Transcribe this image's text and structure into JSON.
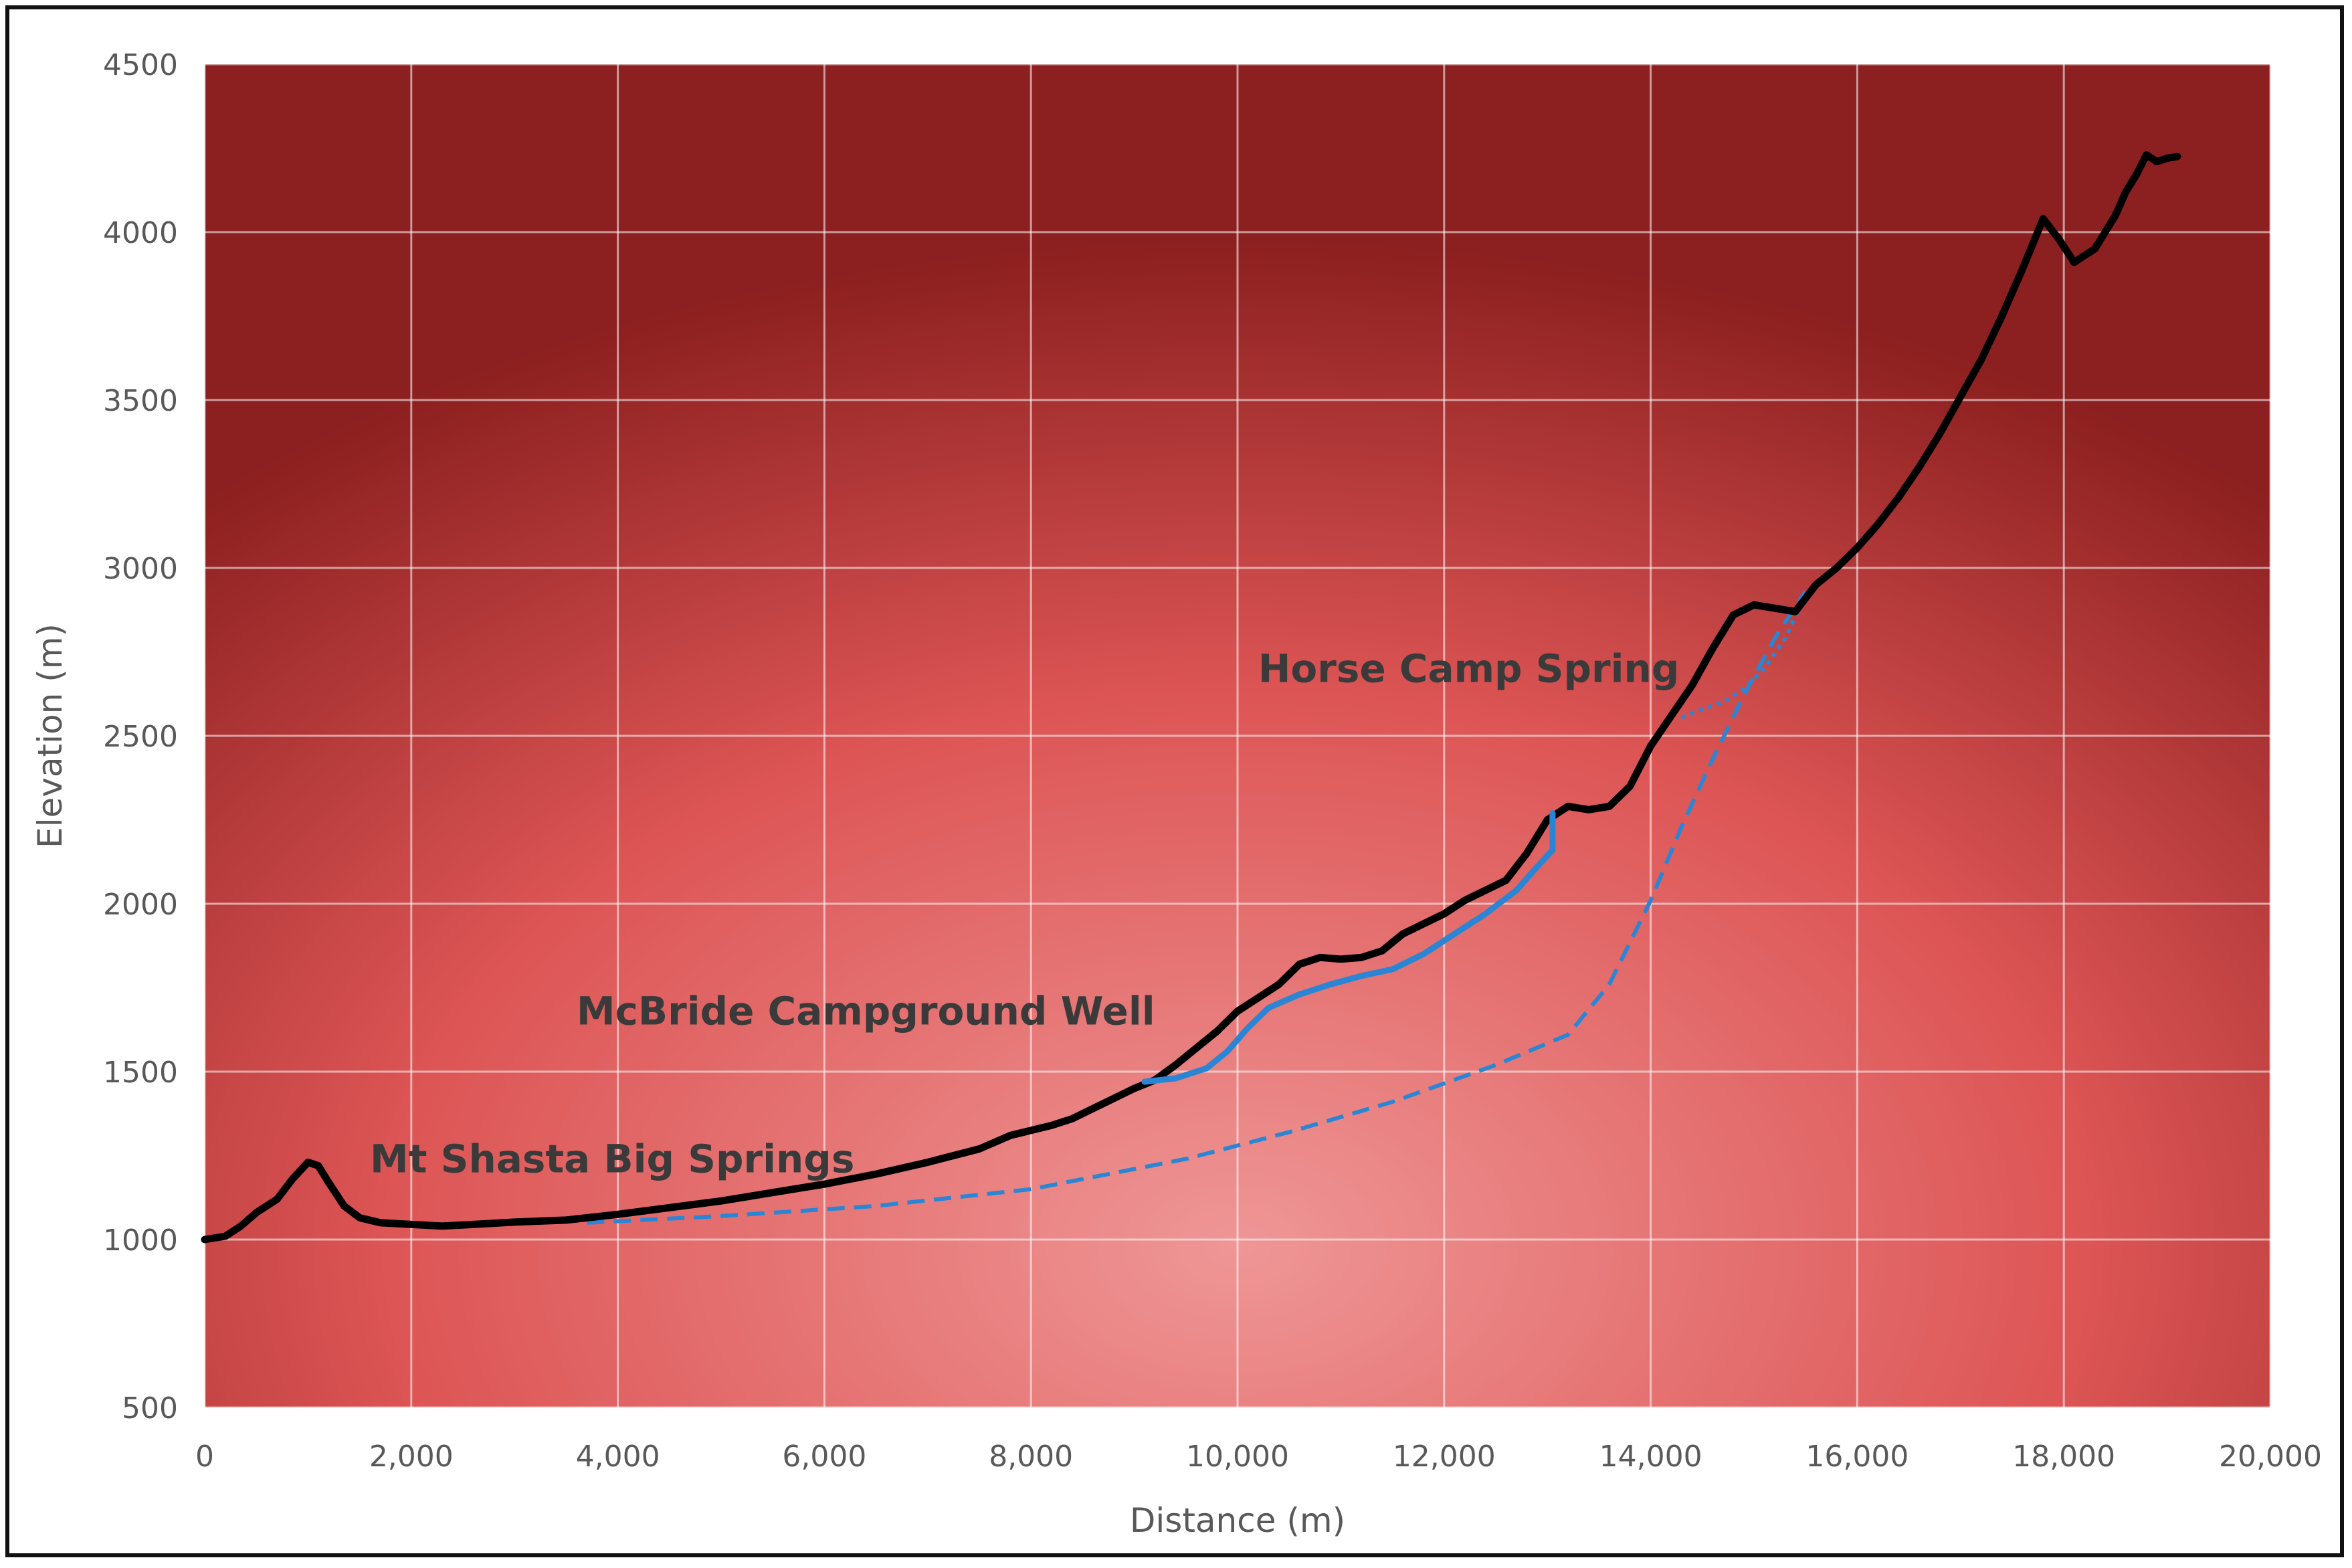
{
  "chart_data": {
    "type": "line",
    "xlabel": "Distance (m)",
    "ylabel": "Elevation (m)",
    "xlim": [
      0,
      20000
    ],
    "ylim": [
      500,
      4500
    ],
    "xticks": [
      "0",
      "2,000",
      "4,000",
      "6,000",
      "8,000",
      "10,000",
      "12,000",
      "14,000",
      "16,000",
      "18,000",
      "20,000"
    ],
    "yticks": [
      "500",
      "1000",
      "1500",
      "2000",
      "2500",
      "3000",
      "3500",
      "4000",
      "4500"
    ],
    "grid": true,
    "background": "red radial gradient",
    "colors": {
      "profile": "#000000",
      "flowpath": "#2a86d4",
      "annotation": "#3a3a3a"
    },
    "series": [
      {
        "style": "solid-black",
        "x": [
          0,
          200,
          350,
          500,
          700,
          850,
          1000,
          1100,
          1200,
          1350,
          1500,
          1700,
          2000,
          2300,
          2600,
          3000,
          3500,
          4000,
          4500,
          5000,
          5500,
          6000,
          6500,
          7000,
          7500,
          7800,
          8000,
          8200,
          8400,
          8600,
          8800,
          9000,
          9200,
          9400,
          9600,
          9800,
          10000,
          10200,
          10400,
          10600,
          10800,
          11000,
          11200,
          11400,
          11600,
          11800,
          12000,
          12200,
          12400,
          12600,
          12800,
          13000,
          13200,
          13400,
          13600,
          13800,
          14000,
          14200,
          14400,
          14600,
          14800,
          15000,
          15200,
          15400,
          15600,
          15800,
          16000,
          16200,
          16400,
          16600,
          16800,
          17000,
          17200,
          17400,
          17600,
          17800,
          17950,
          18100,
          18300,
          18500,
          18600,
          18700,
          18800,
          18900,
          19000,
          19100
        ],
        "y": [
          1000,
          1010,
          1040,
          1080,
          1120,
          1180,
          1230,
          1220,
          1170,
          1100,
          1065,
          1050,
          1045,
          1040,
          1045,
          1052,
          1058,
          1075,
          1095,
          1115,
          1140,
          1165,
          1195,
          1230,
          1270,
          1310,
          1325,
          1340,
          1360,
          1390,
          1420,
          1450,
          1475,
          1520,
          1570,
          1620,
          1680,
          1720,
          1760,
          1820,
          1840,
          1835,
          1840,
          1860,
          1910,
          1940,
          1970,
          2010,
          2040,
          2070,
          2150,
          2250,
          2290,
          2280,
          2290,
          2350,
          2470,
          2560,
          2650,
          2760,
          2860,
          2890,
          2880,
          2870,
          2950,
          3000,
          3060,
          3130,
          3210,
          3300,
          3400,
          3510,
          3620,
          3750,
          3890,
          4040,
          3980,
          3910,
          3950,
          4050,
          4120,
          4170,
          4230,
          4210,
          4220,
          4225
        ]
      },
      {
        "style": "solid-blue",
        "x": [
          9100,
          9400,
          9700,
          9900,
          10100,
          10300,
          10600,
          10900,
          11200,
          11500,
          11800,
          12100,
          12400,
          12700,
          12900,
          13050,
          13050
        ],
        "y": [
          1470,
          1480,
          1510,
          1560,
          1630,
          1690,
          1730,
          1760,
          1785,
          1805,
          1850,
          1910,
          1970,
          2040,
          2110,
          2160,
          2270
        ]
      },
      {
        "style": "dashed-blue",
        "x": [
          3700,
          5000,
          6500,
          8000,
          9500,
          10500,
          11500,
          12500,
          13200,
          13600,
          14000,
          14300,
          14600,
          14900,
          15200,
          15500
        ],
        "y": [
          1050,
          1070,
          1100,
          1150,
          1240,
          1320,
          1410,
          1520,
          1610,
          1760,
          2010,
          2230,
          2430,
          2620,
          2790,
          2930
        ]
      },
      {
        "style": "dotted-blue",
        "x": [
          14300,
          14500,
          14700,
          14900,
          15100,
          15300,
          15500
        ],
        "y": [
          2555,
          2580,
          2600,
          2640,
          2700,
          2790,
          2920
        ]
      }
    ],
    "annotations": [
      {
        "text": "Mt Shasta Big Springs",
        "x": 1600,
        "y": 1200
      },
      {
        "text": "McBride Campground Well",
        "x": 3600,
        "y": 1640
      },
      {
        "text": "Horse Camp Spring",
        "x": 10200,
        "y": 2660
      }
    ]
  }
}
